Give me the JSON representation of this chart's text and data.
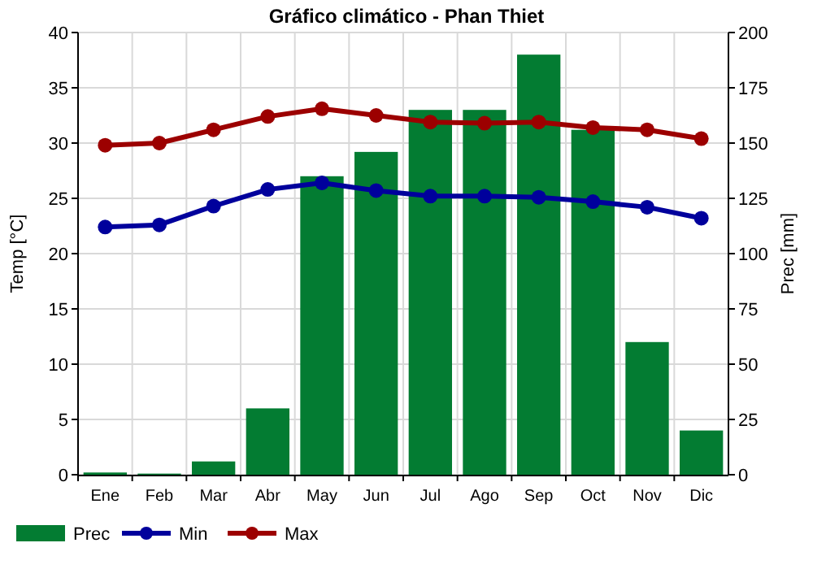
{
  "chart_data": {
    "type": "bar",
    "title": "Gráfico climático - Phan Thiet",
    "ylabel": "Temp [°C]",
    "y2label": "Prec [mm]",
    "categories": [
      "Ene",
      "Feb",
      "Mar",
      "Abr",
      "May",
      "Jun",
      "Jul",
      "Ago",
      "Sep",
      "Oct",
      "Nov",
      "Dic"
    ],
    "series": [
      {
        "name": "Prec",
        "axis": "y2",
        "color": "#037c32",
        "values": [
          1,
          0.5,
          6,
          30,
          135,
          146,
          165,
          165,
          190,
          156,
          60,
          20
        ]
      },
      {
        "name": "Min",
        "type": "line",
        "axis": "y",
        "color": "#00009c",
        "values": [
          22.4,
          22.6,
          24.3,
          25.8,
          26.4,
          25.7,
          25.2,
          25.2,
          25.1,
          24.7,
          24.2,
          23.2
        ]
      },
      {
        "name": "Max",
        "type": "line",
        "axis": "y",
        "color": "#9c0000",
        "values": [
          29.8,
          30.0,
          31.2,
          32.4,
          33.1,
          32.5,
          31.9,
          31.8,
          31.9,
          31.4,
          31.2,
          30.4
        ]
      }
    ],
    "ylim": [
      0,
      40
    ],
    "yticks": [
      0,
      5,
      10,
      15,
      20,
      25,
      30,
      35,
      40
    ],
    "y2lim": [
      0,
      200
    ],
    "y2ticks": [
      0,
      25,
      50,
      75,
      100,
      125,
      150,
      175,
      200
    ],
    "grid": true,
    "legend": "bottom left",
    "marker": "circle",
    "line_style": "solid"
  }
}
